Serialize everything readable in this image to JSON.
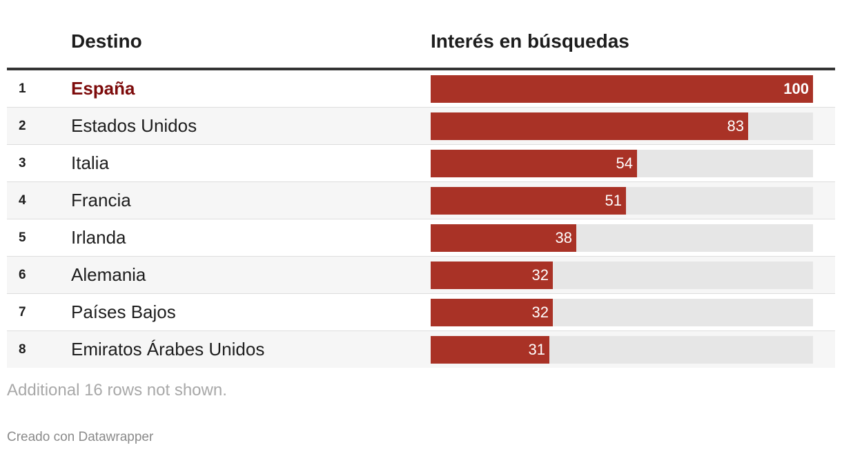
{
  "chart_data": {
    "type": "bar",
    "columns": {
      "rank": "",
      "destination": "Destino",
      "interest": "Interés en búsquedas"
    },
    "max": 100,
    "rows": [
      {
        "rank": "1",
        "name": "España",
        "value": 100,
        "highlight": true
      },
      {
        "rank": "2",
        "name": "Estados Unidos",
        "value": 83
      },
      {
        "rank": "3",
        "name": "Italia",
        "value": 54
      },
      {
        "rank": "4",
        "name": "Francia",
        "value": 51
      },
      {
        "rank": "5",
        "name": "Irlanda",
        "value": 38
      },
      {
        "rank": "6",
        "name": "Alemania",
        "value": 32
      },
      {
        "rank": "7",
        "name": "Países Bajos",
        "value": 32
      },
      {
        "rank": "8",
        "name": "Emiratos Árabes Unidos",
        "value": 31
      }
    ],
    "bar_color": "#a93226",
    "track_color": "#e6e6e6",
    "highlight_color": "#7d0b0b"
  },
  "footer": {
    "note": "Additional 16 rows not shown.",
    "credit": "Creado con Datawrapper"
  }
}
